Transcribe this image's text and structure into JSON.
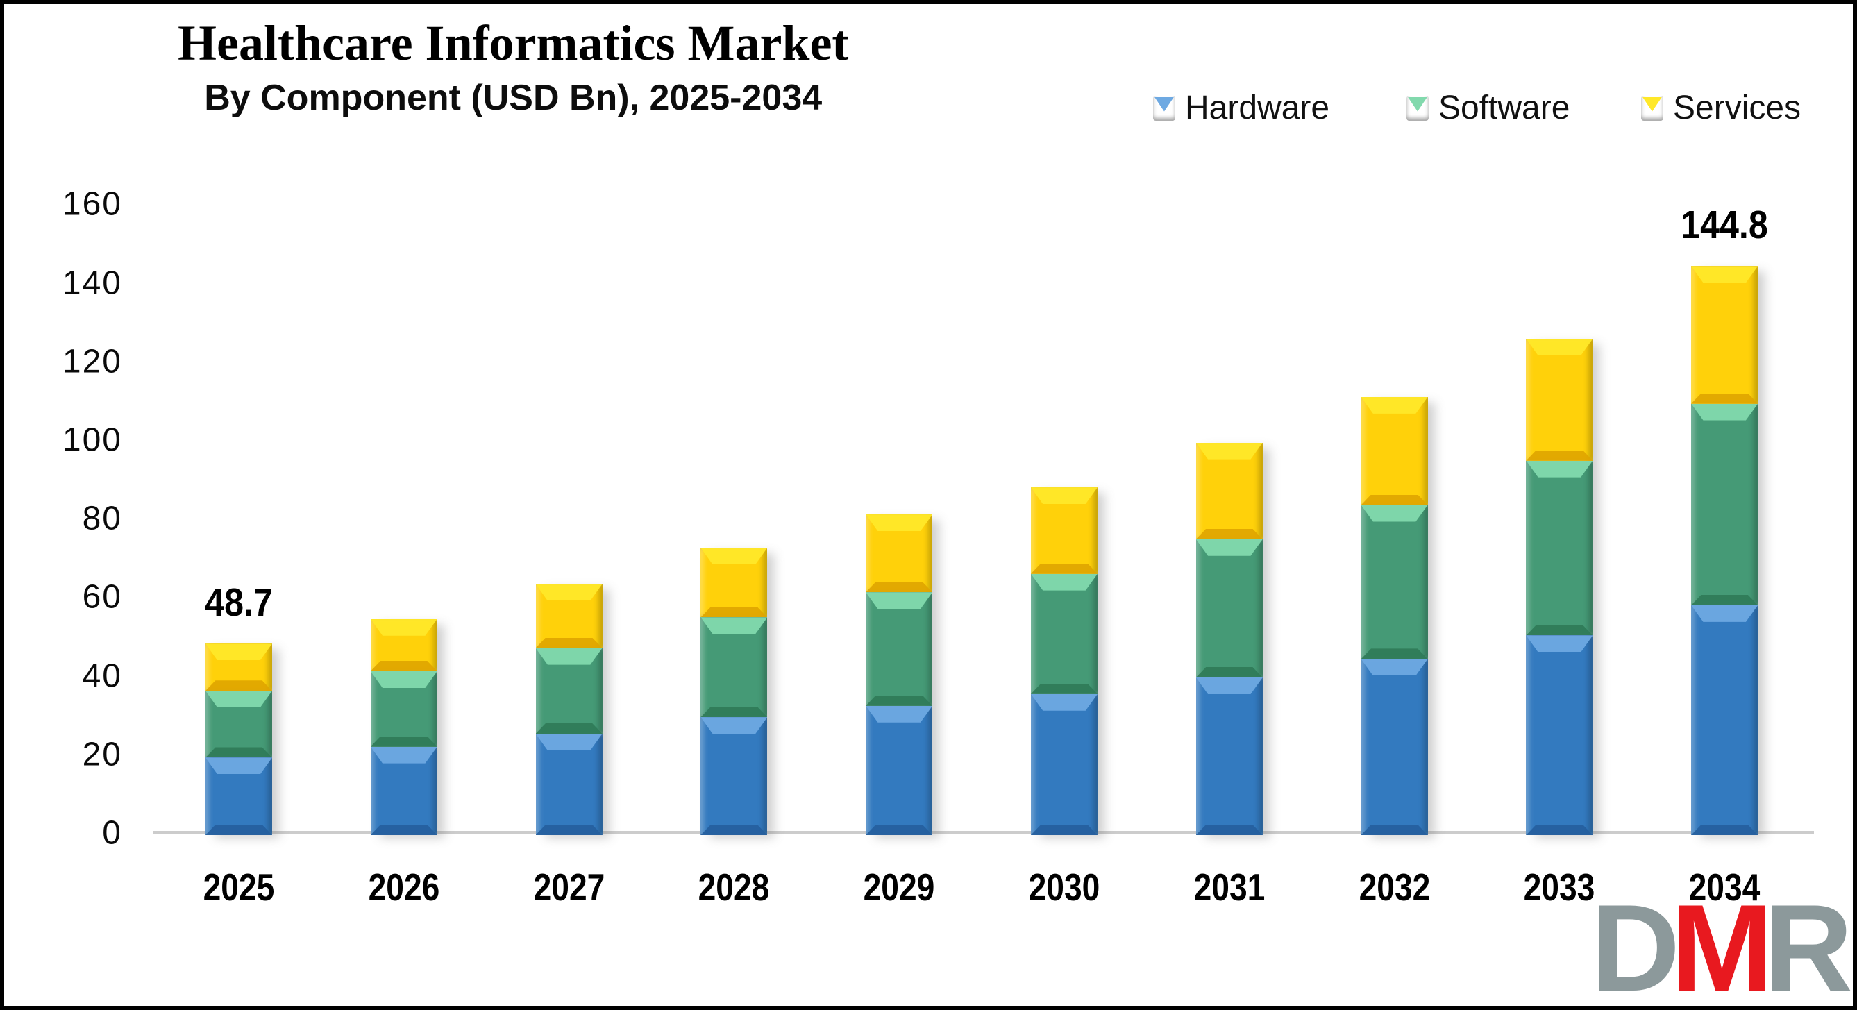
{
  "title": "Healthcare Informatics Market",
  "subtitle": "By Component (USD Bn), 2025-2034",
  "legend": [
    {
      "label": "Hardware",
      "color": "#337abf"
    },
    {
      "label": "Software",
      "color": "#459a76"
    },
    {
      "label": "Services",
      "color": "#ffd10a"
    }
  ],
  "chart_data": {
    "type": "bar",
    "stacked": true,
    "title": "Healthcare Informatics Market",
    "subtitle": "By Component (USD Bn), 2025-2034",
    "xlabel": "",
    "ylabel": "",
    "ylim": [
      0,
      160
    ],
    "yticks": [
      0,
      20,
      40,
      60,
      80,
      100,
      120,
      140,
      160
    ],
    "grid": false,
    "legend_position": "top-right",
    "categories": [
      "2025",
      "2026",
      "2027",
      "2028",
      "2029",
      "2030",
      "2031",
      "2032",
      "2033",
      "2034"
    ],
    "series": [
      {
        "name": "Hardware",
        "color": "#337abf",
        "values": [
          19.7,
          22.5,
          25.8,
          30.0,
          32.9,
          35.9,
          40.1,
          44.8,
          50.8,
          58.5
        ]
      },
      {
        "name": "Software",
        "color": "#459a76",
        "values": [
          17.0,
          19.2,
          21.8,
          25.4,
          28.9,
          30.6,
          35.2,
          39.2,
          44.5,
          51.3
        ]
      },
      {
        "name": "Services",
        "color": "#ffd10a",
        "values": [
          12.0,
          13.3,
          16.3,
          17.7,
          19.8,
          22.0,
          24.6,
          27.5,
          31.0,
          35.0
        ]
      }
    ],
    "totals": [
      48.7,
      55.0,
      63.9,
      73.1,
      81.6,
      88.5,
      99.9,
      111.5,
      126.3,
      144.8
    ],
    "bar_labels": [
      {
        "category": "2025",
        "text": "48.7"
      },
      {
        "category": "2034",
        "text": "144.8"
      }
    ]
  },
  "logo": {
    "letters": [
      {
        "char": "D",
        "color": "#8c999b"
      },
      {
        "char": "M",
        "color": "#e8191f"
      },
      {
        "char": "R",
        "color": "#8c999b"
      }
    ]
  }
}
